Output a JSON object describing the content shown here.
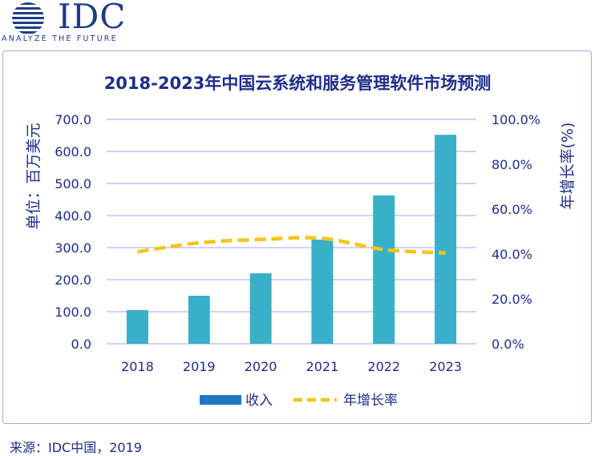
{
  "logo": {
    "brand": "IDC",
    "tagline": "ANALYZE THE FUTURE"
  },
  "colors": {
    "bar": "#3ab0c8",
    "line": "#f5c518",
    "text": "#1f2d8a",
    "grid": "#b8b8ee",
    "legend_bar": "#1f77c0"
  },
  "chart_data": {
    "type": "bar",
    "title": "2018-2023年中国云系统和服务管理软件市场预测",
    "categories": [
      "2018",
      "2019",
      "2020",
      "2021",
      "2022",
      "2023"
    ],
    "series": [
      {
        "name": "收入",
        "type": "bar",
        "axis": "left",
        "values": [
          105,
          150,
          220,
          325,
          463,
          652
        ]
      },
      {
        "name": "年增长率",
        "type": "line",
        "style": "dashed",
        "axis": "right",
        "values": [
          41.0,
          45.0,
          46.5,
          47.0,
          42.0,
          40.5
        ]
      }
    ],
    "ylabel": "单位：百万美元",
    "ylabel_right": "年增长率(%)",
    "ylim": [
      0,
      700
    ],
    "ylim_right": [
      0,
      100
    ],
    "yticks": [
      "0.0",
      "100.0",
      "200.0",
      "300.0",
      "400.0",
      "500.0",
      "600.0",
      "700.0"
    ],
    "yticks_right": [
      "0.0%",
      "20.0%",
      "40.0%",
      "60.0%",
      "80.0%",
      "100.0%"
    ],
    "legend": [
      "收入",
      "年增长率"
    ],
    "legend_position": "bottom",
    "grid": true
  },
  "source": "来源：IDC中国，2019"
}
